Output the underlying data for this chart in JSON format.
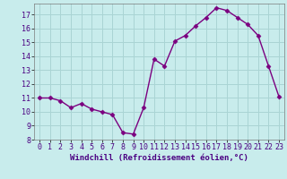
{
  "x": [
    0,
    1,
    2,
    3,
    4,
    5,
    6,
    7,
    8,
    9,
    10,
    11,
    12,
    13,
    14,
    15,
    16,
    17,
    18,
    19,
    20,
    21,
    22,
    23
  ],
  "y": [
    11,
    11,
    10.8,
    10.3,
    10.6,
    10.2,
    10.0,
    9.8,
    8.5,
    8.4,
    10.3,
    13.8,
    13.3,
    15.1,
    15.5,
    16.2,
    16.8,
    17.5,
    17.3,
    16.8,
    16.3,
    15.5,
    13.3,
    11.1
  ],
  "line_color": "#7B0080",
  "marker_color": "#7B0080",
  "bg_color": "#c8ecec",
  "grid_color": "#aad4d4",
  "xlabel": "Windchill (Refroidissement éolien,°C)",
  "ylim": [
    8,
    17.8
  ],
  "xlim": [
    -0.5,
    23.5
  ],
  "yticks": [
    8,
    9,
    10,
    11,
    12,
    13,
    14,
    15,
    16,
    17
  ],
  "xticks": [
    0,
    1,
    2,
    3,
    4,
    5,
    6,
    7,
    8,
    9,
    10,
    11,
    12,
    13,
    14,
    15,
    16,
    17,
    18,
    19,
    20,
    21,
    22,
    23
  ],
  "xlabel_fontsize": 6.5,
  "tick_fontsize": 6,
  "marker_size": 2.5,
  "line_width": 1.0
}
